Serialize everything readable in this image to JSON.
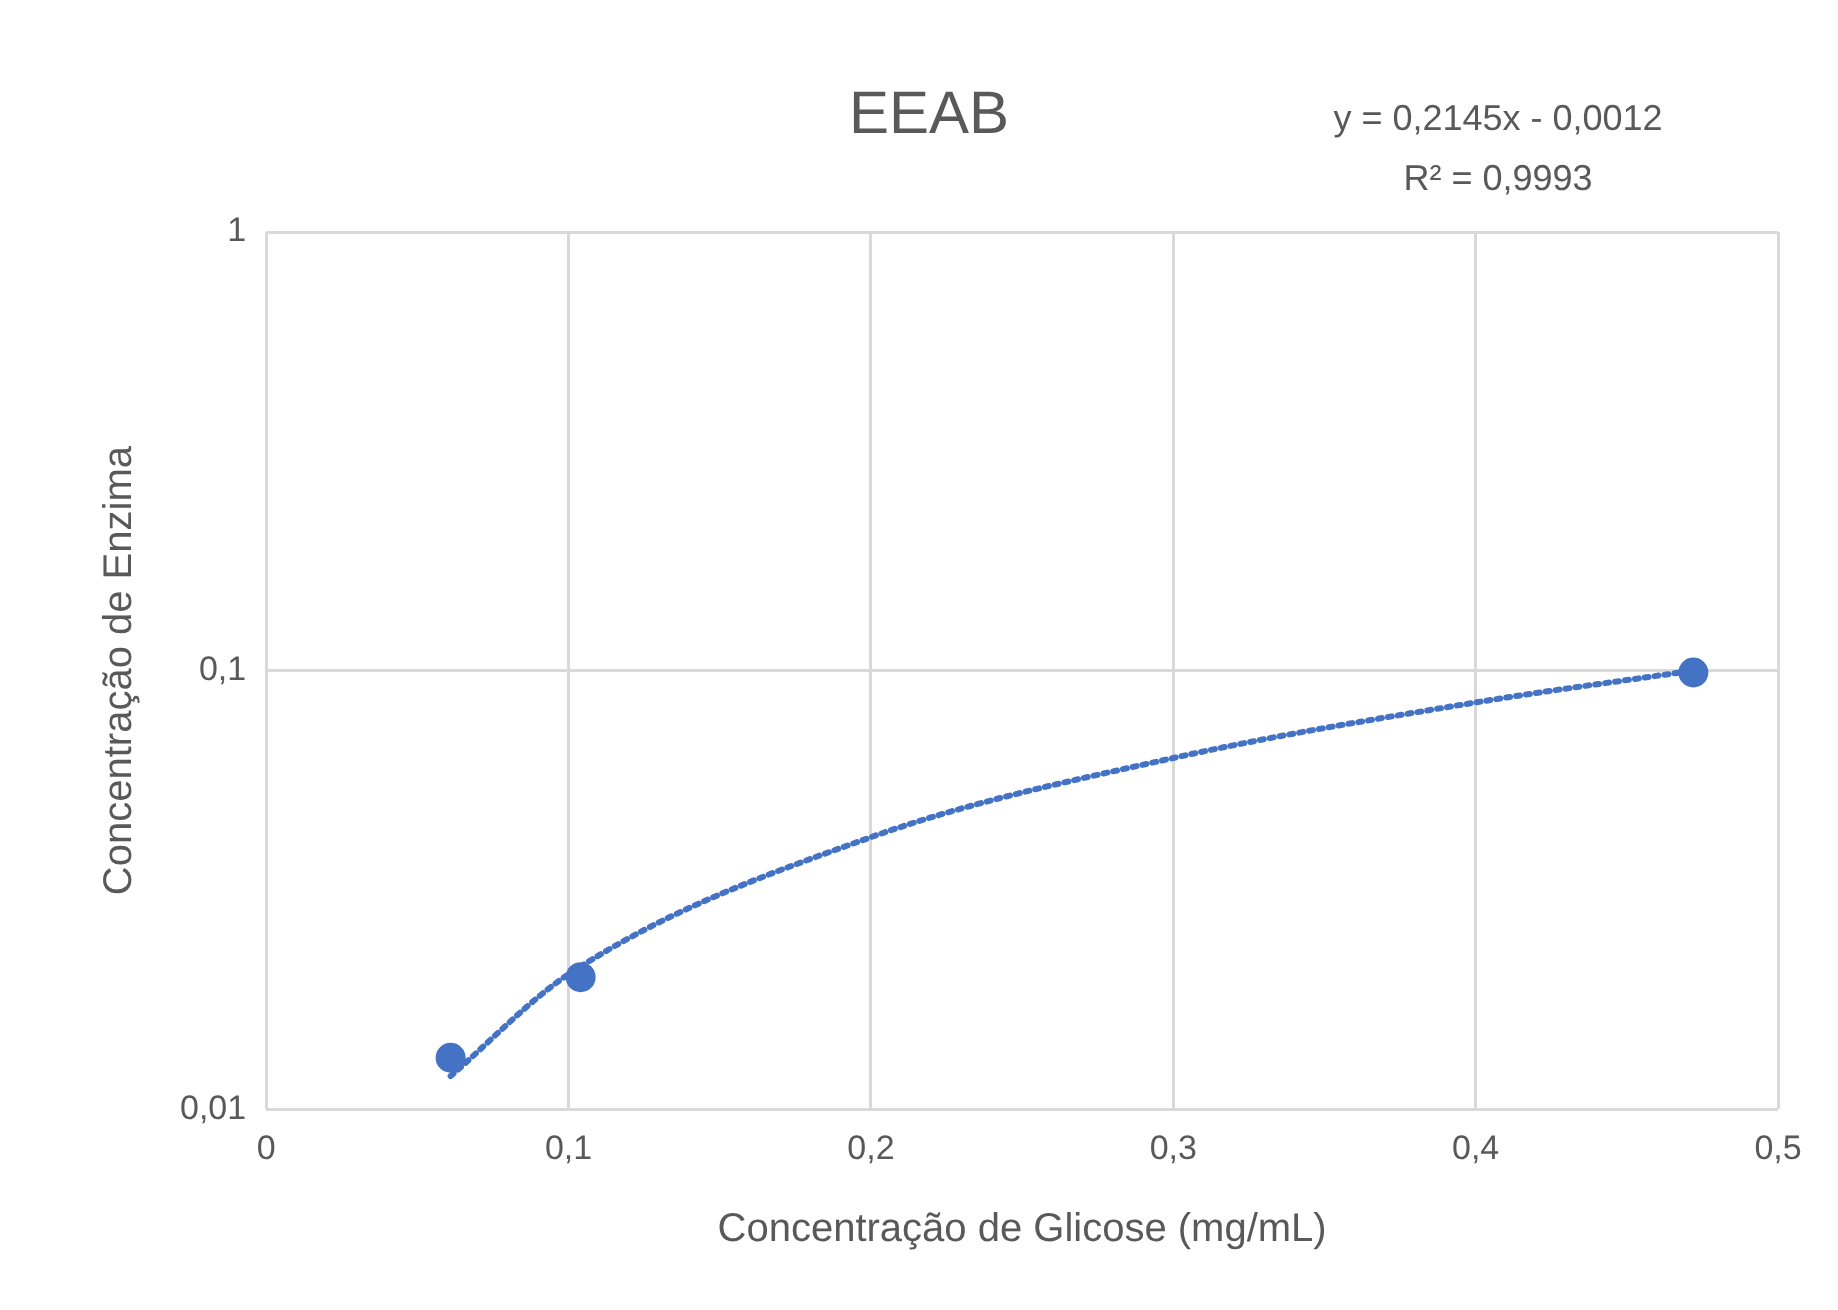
{
  "chart_data": {
    "type": "scatter",
    "title": "EEAB",
    "xlabel": "Concentração de Glicose (mg/mL)",
    "ylabel": "Concentração de Enzima",
    "annotations": [
      "y = 0,2145x - 0,0012",
      "R² = 0,9993"
    ],
    "series": [
      {
        "color": "#4472c4",
        "marker": "circle",
        "x": [
          0.061,
          0.104,
          0.472
        ],
        "values": [
          0.0131,
          0.02,
          0.099
        ]
      },
      {
        "type": "line",
        "color": "#4472c4",
        "marker": "none",
        "line_style": "dotted",
        "x": [
          0.061,
          0.1,
          0.2,
          0.3,
          0.4,
          0.472
        ],
        "values": [
          0.0119,
          0.0203,
          0.0417,
          0.0632,
          0.0846,
          0.1
        ]
      }
    ],
    "log": "y",
    "grid": true,
    "legend": false,
    "xlim": [
      0,
      0.5
    ],
    "xticks": [
      0,
      {
        "value": 0.1,
        "label": "0,1"
      },
      {
        "value": 0.2,
        "label": "0,2"
      },
      {
        "value": 0.3,
        "label": "0,3"
      },
      {
        "value": 0.4,
        "label": "0,4"
      },
      {
        "value": 0.5,
        "label": "0,5"
      }
    ],
    "ylim": [
      0.01,
      1
    ],
    "yticks": [
      {
        "value": 0.01,
        "label": "0,01"
      },
      {
        "value": 0.1,
        "label": "0,1"
      },
      1
    ]
  }
}
